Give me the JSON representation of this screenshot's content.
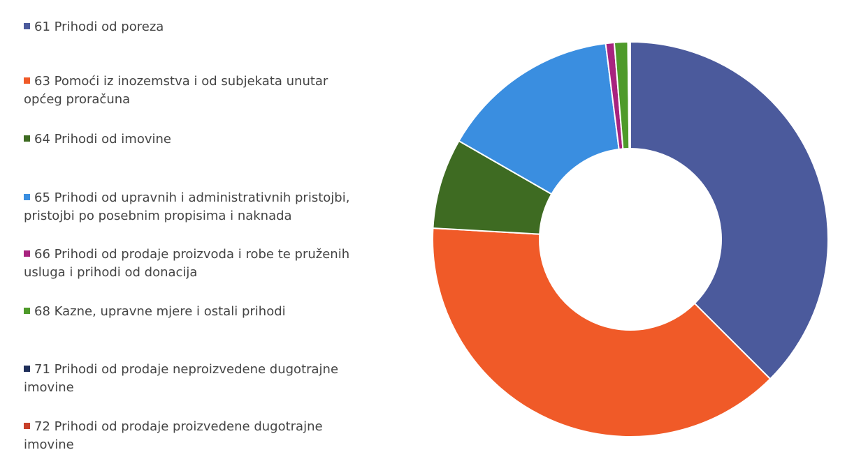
{
  "chart_data": {
    "type": "pie",
    "categories": [
      "61 Prihodi od poreza",
      "63 Pomoći iz inozemstva i od subjekata unutar općeg proračuna",
      "64 Prihodi od imovine",
      "65 Prihodi od upravnih i administrativnih pristojbi, pristojbi po posebnim propisima i naknada",
      "66 Prihodi od prodaje proizvoda i robe te pruženih usluga i prihodi od donacija",
      "68 Kazne, upravne mjere i ostali prihodi",
      "71 Prihodi od prodaje neproizvedene dugotrajne imovine",
      "72 Prihodi od prodaje proizvedene dugotrajne imovine"
    ],
    "values": [
      37.5,
      38.4,
      7.4,
      14.7,
      0.7,
      1.1,
      0.1,
      0.1
    ],
    "colors": [
      "#4b5a9c",
      "#f05a28",
      "#3e6b22",
      "#3a8ee0",
      "#a8237f",
      "#4e9a2a",
      "#1f2f5a",
      "#c8402a"
    ]
  }
}
